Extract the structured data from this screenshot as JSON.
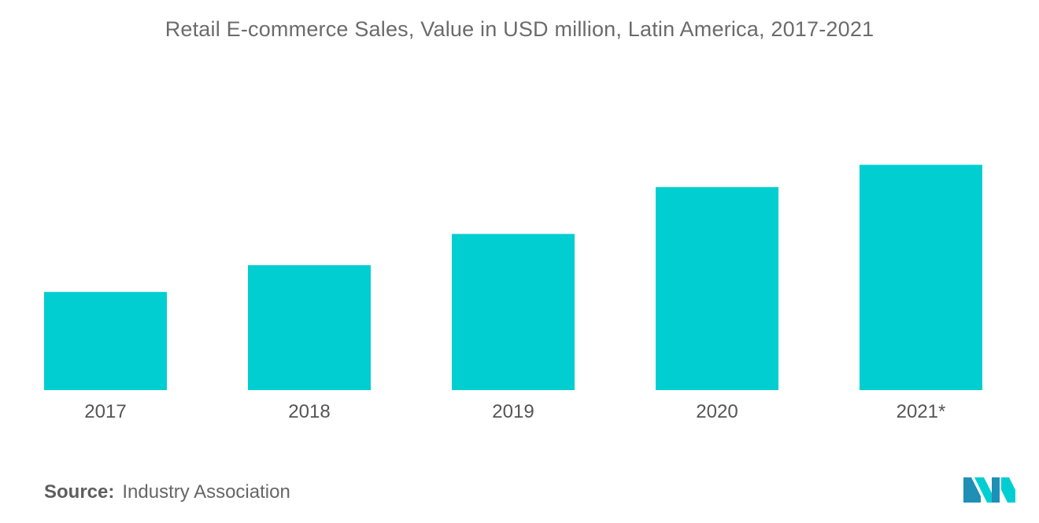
{
  "chart_data": {
    "type": "bar",
    "title": "Retail E-commerce Sales, Value in USD million, Latin America, 2017-2021",
    "categories": [
      "2017",
      "2018",
      "2019",
      "2020",
      "2021*"
    ],
    "values": [
      44,
      56,
      70,
      91,
      101
    ],
    "ylim": [
      0,
      110
    ],
    "grid": false,
    "bar_color": "#00CED1"
  },
  "source": {
    "label": "Source:",
    "text": "Industry Association"
  },
  "logo": {
    "icon": "mordor-intelligence-logo-icon",
    "colors": [
      "#1f8fb5",
      "#00CED1"
    ]
  }
}
